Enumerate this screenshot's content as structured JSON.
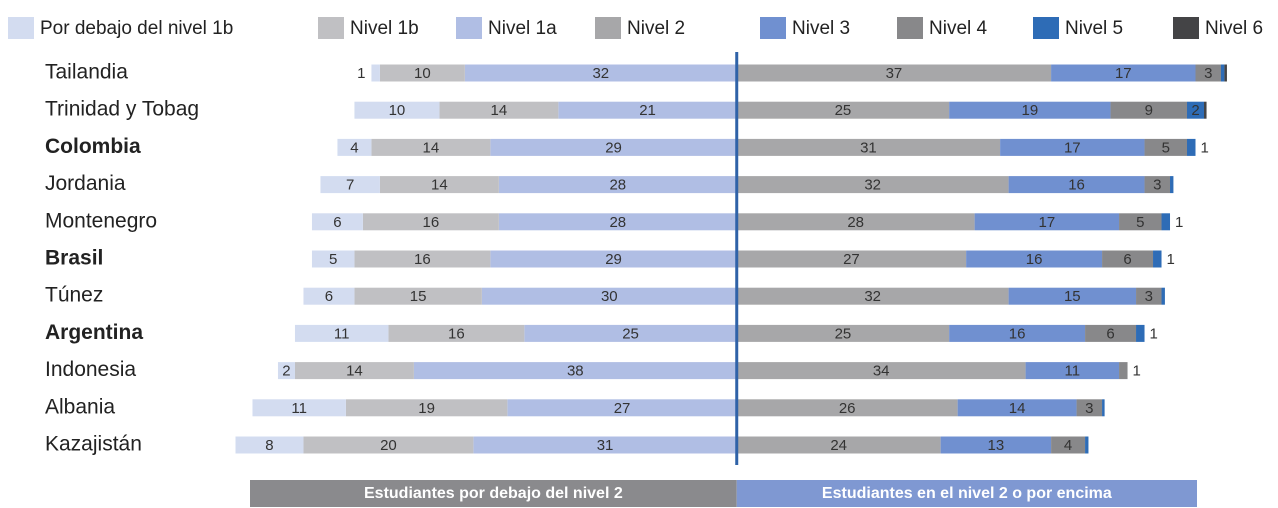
{
  "chart_data": {
    "type": "diverging_bar",
    "categories": [
      "Tailandia",
      "Trinidad y Tobag",
      "Colombia",
      "Jordania",
      "Montenegro",
      "Brasil",
      "Túnez",
      "Argentina",
      "Indonesia",
      "Albania",
      "Kazajistán"
    ],
    "bold_categories": [
      2,
      5,
      7
    ],
    "highlight_category": 2,
    "highlight_color": "#1f5fa8",
    "diverge_index": 3,
    "xlim": [
      -60,
      55
    ],
    "series": [
      {
        "name": "Por debajo del nivel 1b",
        "color": "#d3dcf0",
        "values": [
          1,
          10,
          4,
          7,
          6,
          5,
          6,
          11,
          2,
          11,
          8
        ],
        "value_labels": [
          "1",
          "10",
          "4",
          "7",
          "6",
          "5",
          "6",
          "11",
          "2",
          "11",
          "8"
        ]
      },
      {
        "name": "Nivel 1b",
        "color": "#c0c0c3",
        "values": [
          10,
          14,
          14,
          14,
          16,
          16,
          15,
          16,
          14,
          19,
          20
        ],
        "value_labels": [
          "10",
          "14",
          "14",
          "14",
          "16",
          "16",
          "15",
          "16",
          "14",
          "19",
          "20"
        ]
      },
      {
        "name": "Nivel 1a",
        "color": "#b0bee4",
        "values": [
          32,
          21,
          29,
          28,
          28,
          29,
          30,
          25,
          38,
          27,
          31
        ],
        "value_labels": [
          "32",
          "21",
          "29",
          "28",
          "28",
          "29",
          "30",
          "25",
          "38",
          "27",
          "31"
        ]
      },
      {
        "name": "Nivel 2",
        "color": "#a7a7a9",
        "values": [
          37,
          25,
          31,
          32,
          28,
          27,
          32,
          25,
          34,
          26,
          24
        ],
        "value_labels": [
          "37",
          "25",
          "31",
          "32",
          "28",
          "27",
          "32",
          "25",
          "34",
          "26",
          "24"
        ]
      },
      {
        "name": "Nivel 3",
        "color": "#7090d0",
        "values": [
          17,
          19,
          17,
          16,
          17,
          16,
          15,
          16,
          11,
          14,
          13
        ],
        "value_labels": [
          "17",
          "19",
          "17",
          "16",
          "17",
          "16",
          "15",
          "16",
          "11",
          "14",
          "13"
        ]
      },
      {
        "name": "Nivel 4",
        "color": "#88888a",
        "values": [
          3,
          9,
          5,
          3,
          5,
          6,
          3,
          6,
          1,
          3,
          4
        ],
        "value_labels": [
          "3",
          "9",
          "5",
          "3",
          "5",
          "6",
          "3",
          "6",
          "1",
          "3",
          "4"
        ]
      },
      {
        "name": "Nivel 5",
        "color": "#2e6cb6",
        "values": [
          0.4,
          2,
          1,
          0.4,
          1,
          1,
          0.4,
          1,
          0,
          0.3,
          0.4
        ],
        "value_labels": [
          null,
          "2",
          "1",
          null,
          "1",
          "1",
          null,
          "1",
          null,
          null,
          null
        ]
      },
      {
        "name": "Nivel 6",
        "color": "#444446",
        "values": [
          0.3,
          0.3,
          0,
          0,
          0,
          0,
          0,
          0,
          0,
          0,
          0
        ],
        "value_labels": [
          null,
          null,
          null,
          null,
          null,
          null,
          null,
          null,
          null,
          null,
          null
        ]
      }
    ],
    "footer_labels": [
      "Estudiantes por debajo del nivel 2",
      "Estudiantes en el nivel 2 o por encima"
    ],
    "footer_colors": [
      "#8a8a8d",
      "#7f98d2"
    ],
    "axis_color": "#2f62a8"
  }
}
